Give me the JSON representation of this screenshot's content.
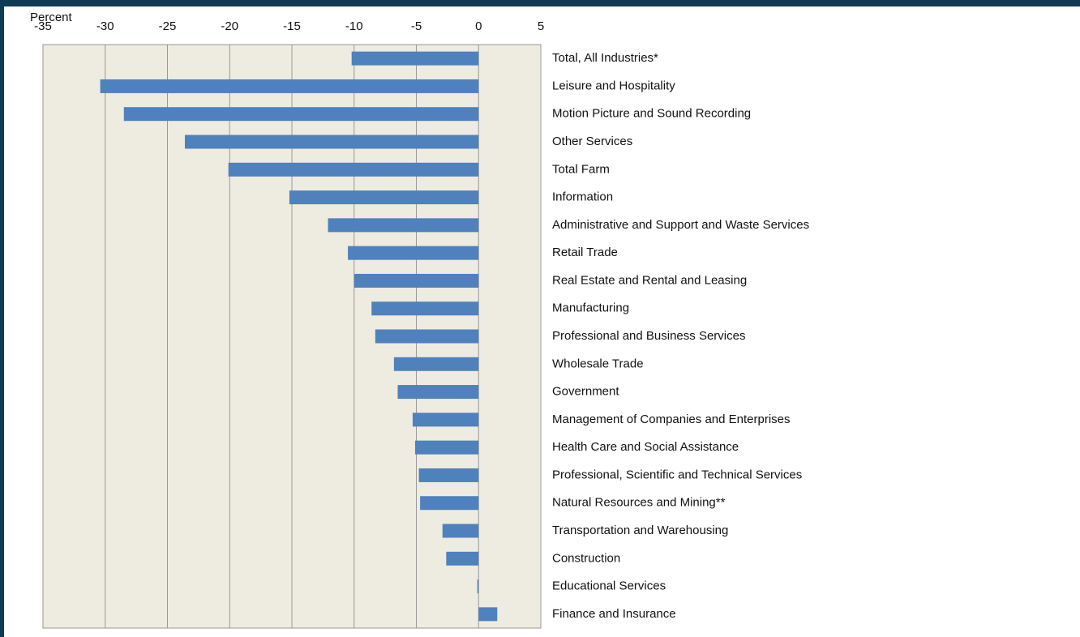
{
  "chart_data": {
    "type": "hbar",
    "y_label": "Percent",
    "categories": [
      "Total, All Industries*",
      "Leisure and Hospitality",
      "Motion Picture and Sound Recording",
      "Other Services",
      "Total Farm",
      "Information",
      "Administrative and Support and Waste Services",
      "Retail Trade",
      "Real Estate and Rental and Leasing",
      "Manufacturing",
      "Professional and Business Services",
      "Wholesale Trade",
      "Government",
      "Management of Companies and Enterprises",
      "Health Care and Social Assistance",
      "Professional, Scientific and Technical Services",
      "Natural Resources and Mining**",
      "Transportation and Warehousing",
      "Construction",
      "Educational Services",
      "Finance and Insurance"
    ],
    "values": [
      -10.2,
      -30.4,
      -28.5,
      -23.6,
      -20.1,
      -15.2,
      -12.1,
      -10.5,
      -10.0,
      -8.6,
      -8.3,
      -6.8,
      -6.5,
      -5.3,
      -5.1,
      -4.8,
      -4.7,
      -2.9,
      -2.6,
      -0.1,
      1.5
    ],
    "color": "#4f81bd",
    "xlim": [
      -35,
      5
    ],
    "xticks": [
      -35,
      -30,
      -25,
      -20,
      -15,
      -10,
      -5,
      0,
      5
    ],
    "grid": true
  }
}
